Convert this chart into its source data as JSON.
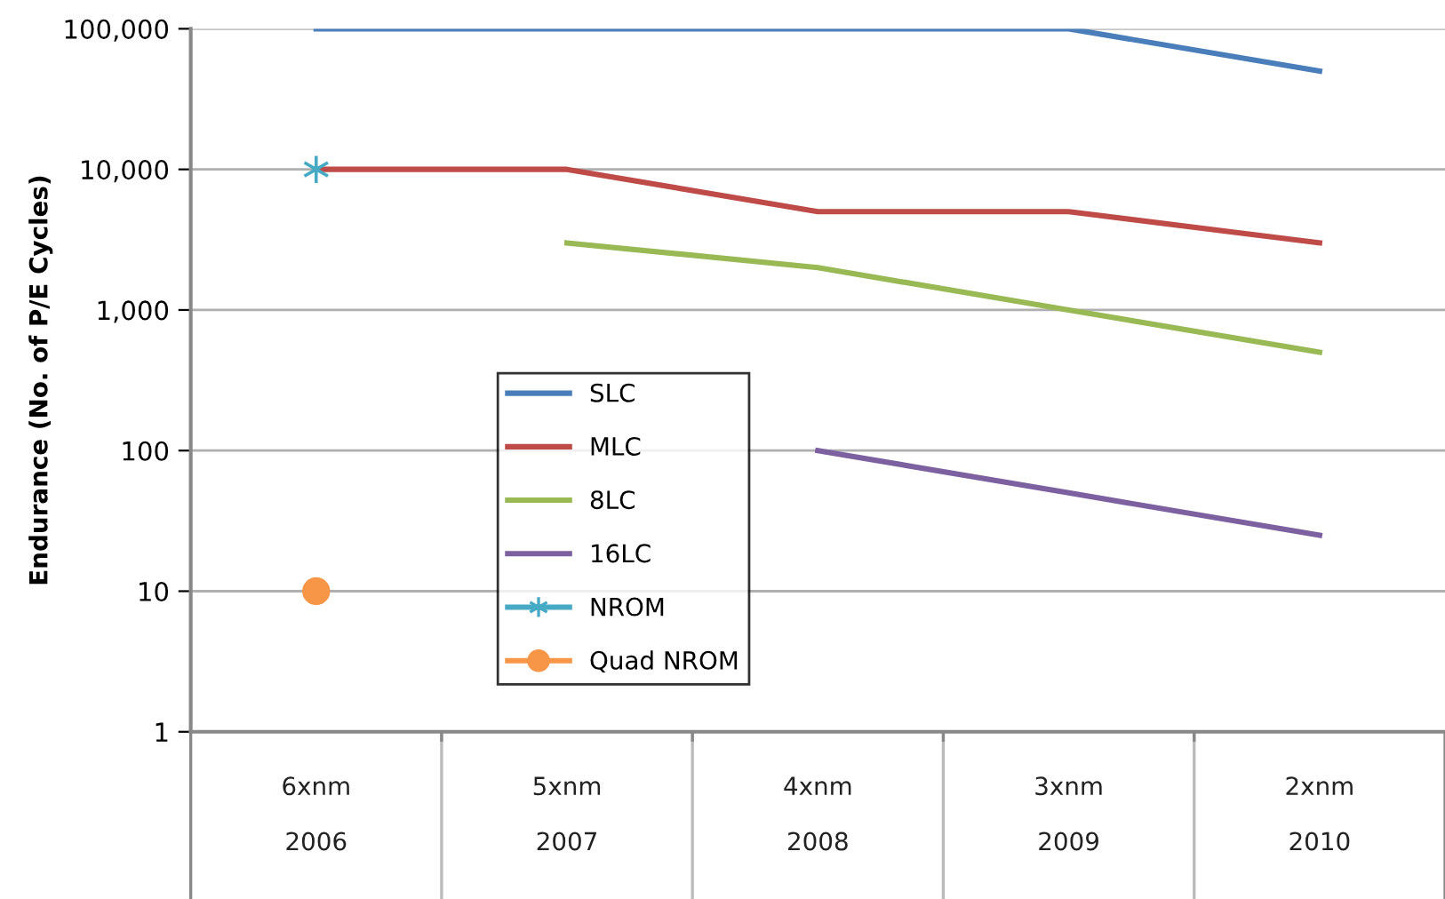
{
  "chart_data": {
    "type": "line",
    "ylabel": "Endurance (No. of P/E Cycles)",
    "categories": [
      "6xnm\n\n2006",
      "5xnm\n\n2007",
      "4xnm\n\n2008",
      "3xnm\n\n2009",
      "2xnm\n\n2010"
    ],
    "log": "y",
    "ylim": [
      1,
      100000
    ],
    "yticks": [
      1,
      10,
      100,
      {
        "value": 1000,
        "label": "1,000"
      },
      {
        "value": 10000,
        "label": "10,000"
      },
      {
        "value": 100000,
        "label": "100,000"
      }
    ],
    "grid": "y",
    "legend": "bottom left",
    "series": [
      {
        "name": "SLC",
        "color": "#4a7ebb",
        "values": [
          100000,
          100000,
          100000,
          100000,
          50000
        ]
      },
      {
        "name": "MLC",
        "color": "#be4b48",
        "values": [
          10000,
          10000,
          5000,
          5000,
          3000
        ]
      },
      {
        "name": "8LC",
        "color": "#98b954",
        "values": [
          null,
          3000,
          2000,
          1000,
          500
        ]
      },
      {
        "name": "16LC",
        "color": "#7d60a0",
        "values": [
          null,
          null,
          100,
          50,
          25
        ]
      },
      {
        "name": "NROM",
        "color": "#46aac5",
        "marker": "cross",
        "values": [
          10000,
          null,
          null,
          null,
          null
        ]
      },
      {
        "name": "Quad NROM",
        "color": "#f79646",
        "marker": "circle",
        "values": [
          10,
          null,
          null,
          null,
          null
        ]
      }
    ]
  }
}
